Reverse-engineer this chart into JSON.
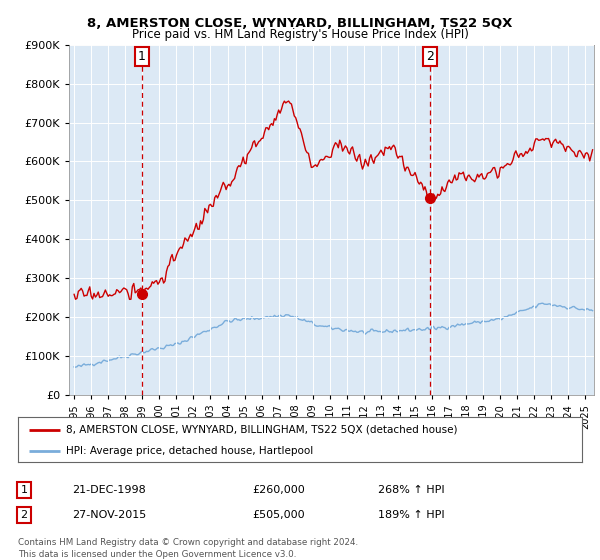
{
  "title1": "8, AMERSTON CLOSE, WYNYARD, BILLINGHAM, TS22 5QX",
  "title2": "Price paid vs. HM Land Registry's House Price Index (HPI)",
  "legend_line1": "8, AMERSTON CLOSE, WYNYARD, BILLINGHAM, TS22 5QX (detached house)",
  "legend_line2": "HPI: Average price, detached house, Hartlepool",
  "footnote": "Contains HM Land Registry data © Crown copyright and database right 2024.\nThis data is licensed under the Open Government Licence v3.0.",
  "sale1_date": "21-DEC-1998",
  "sale1_price": 260000,
  "sale1_price_str": "£260,000",
  "sale1_hpi": "268% ↑ HPI",
  "sale1_year": 1998.96,
  "sale2_date": "27-NOV-2015",
  "sale2_price": 505000,
  "sale2_price_str": "£505,000",
  "sale2_hpi": "189% ↑ HPI",
  "sale2_year": 2015.9,
  "red_color": "#cc0000",
  "blue_color": "#7aaddb",
  "dashed_color": "#cc0000",
  "plot_bg": "#dce9f5",
  "ylim_max": 900000,
  "xlim_start": 1994.7,
  "xlim_end": 2025.5,
  "red_seed": 17,
  "blue_seed": 42
}
